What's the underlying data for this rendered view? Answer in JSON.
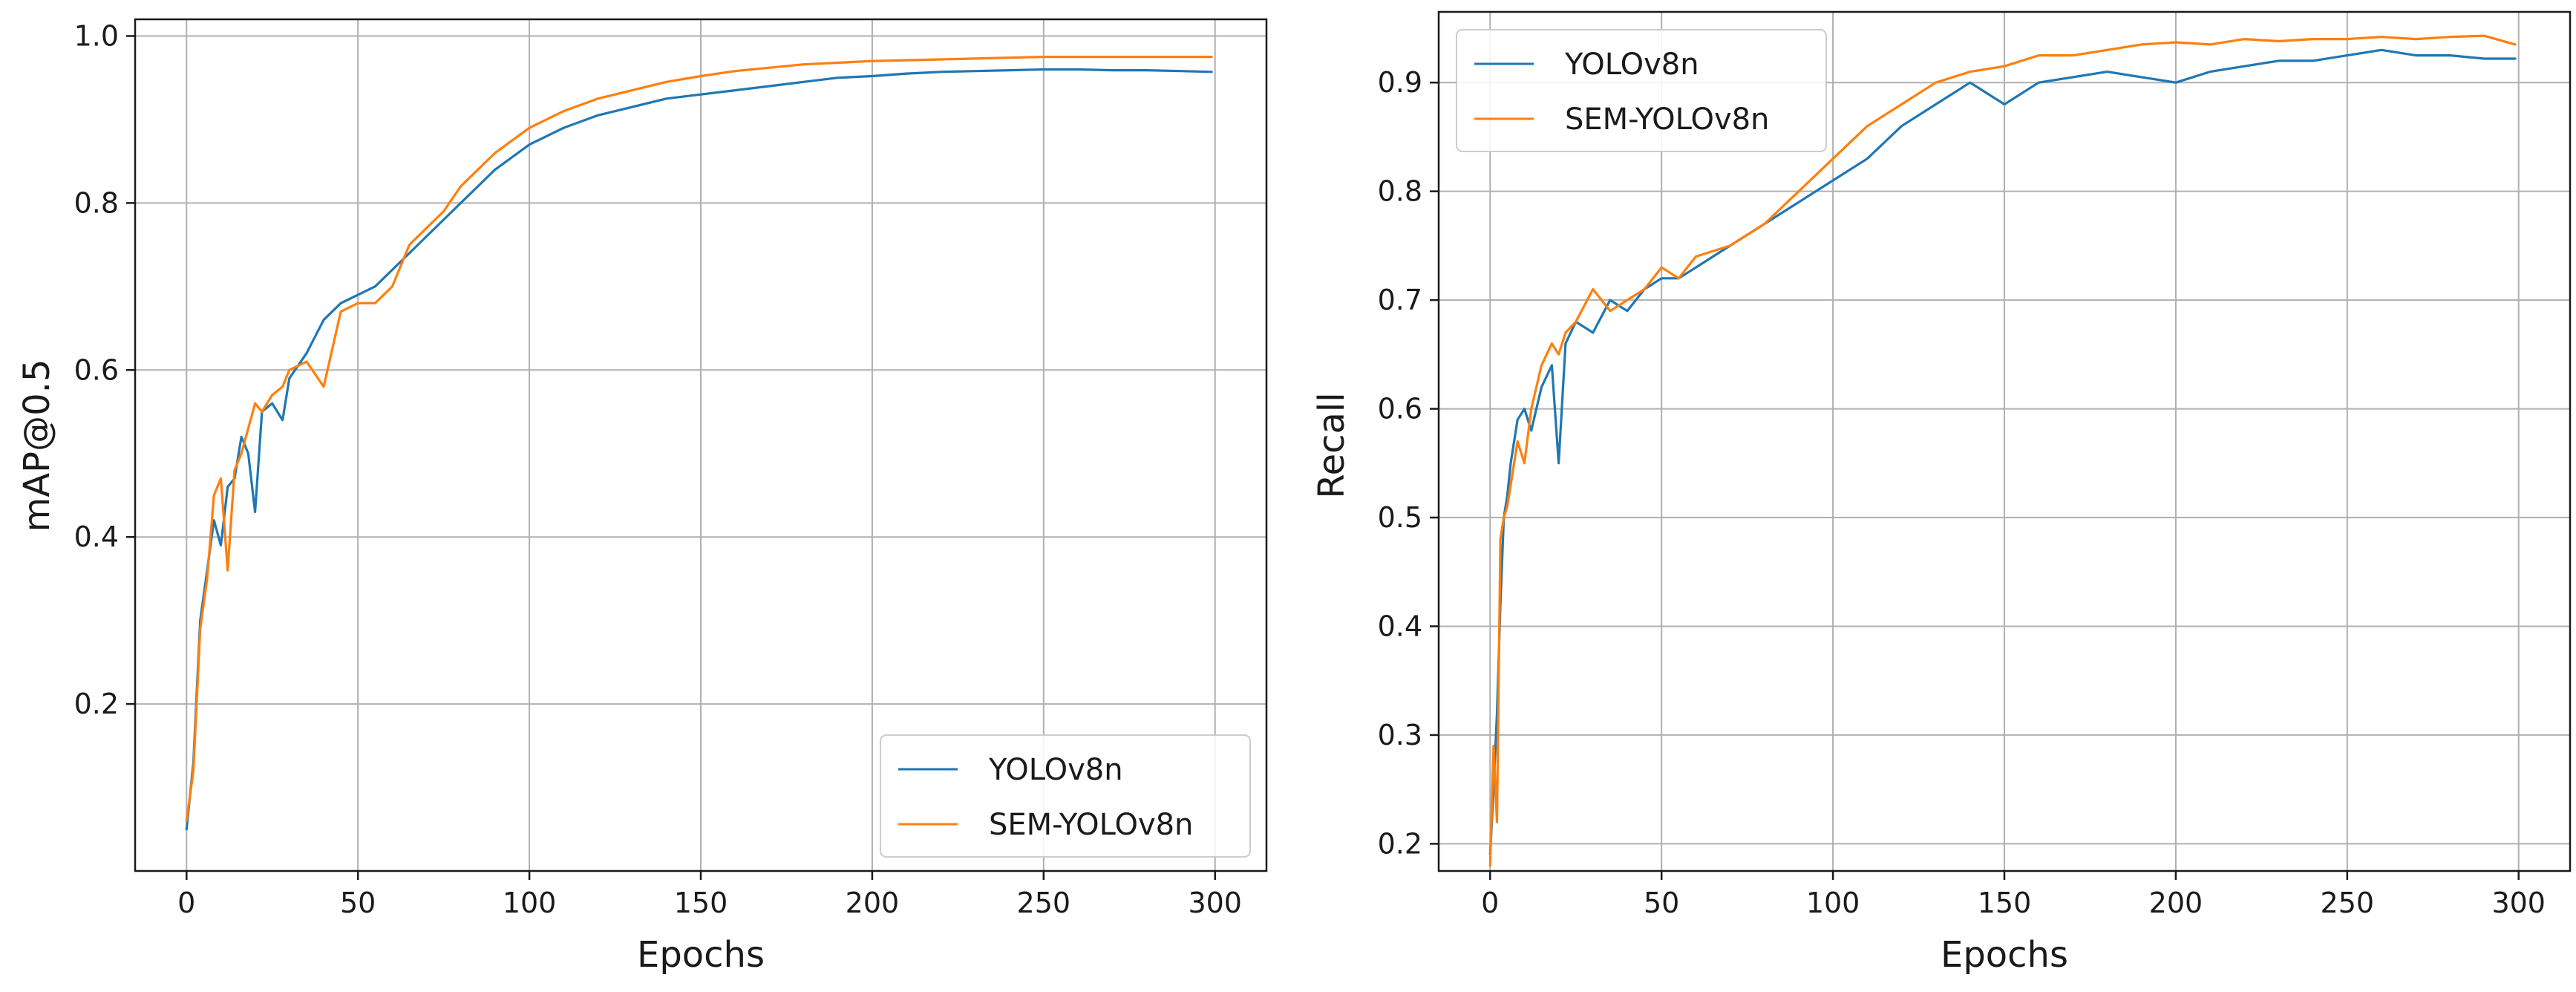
{
  "chart_data": [
    {
      "type": "line",
      "title": "",
      "xlabel": "Epochs",
      "ylabel": "mAP@0.5",
      "xlim": [
        -15,
        315
      ],
      "ylim": [
        0.0,
        1.02
      ],
      "xticks": [
        0,
        50,
        100,
        150,
        200,
        250,
        300
      ],
      "yticks": [
        0.2,
        0.4,
        0.6,
        0.8,
        1.0
      ],
      "xtick_labels": [
        "0",
        "50",
        "100",
        "150",
        "200",
        "250",
        "300"
      ],
      "ytick_labels": [
        "0.2",
        "0.4",
        "0.6",
        "0.8",
        "1.0"
      ],
      "grid": true,
      "legend_position": "bottom-right",
      "series": [
        {
          "name": "YOLOv8n",
          "color": "#1f77b4",
          "x": [
            0,
            2,
            4,
            6,
            8,
            10,
            12,
            14,
            16,
            18,
            20,
            22,
            25,
            28,
            30,
            35,
            40,
            45,
            50,
            55,
            60,
            65,
            70,
            75,
            80,
            90,
            100,
            110,
            120,
            130,
            140,
            150,
            160,
            170,
            180,
            190,
            200,
            210,
            220,
            230,
            240,
            250,
            260,
            270,
            280,
            290,
            299
          ],
          "values": [
            0.05,
            0.13,
            0.3,
            0.36,
            0.42,
            0.39,
            0.46,
            0.47,
            0.52,
            0.5,
            0.43,
            0.55,
            0.56,
            0.54,
            0.59,
            0.62,
            0.66,
            0.68,
            0.69,
            0.7,
            0.72,
            0.74,
            0.76,
            0.78,
            0.8,
            0.84,
            0.87,
            0.89,
            0.905,
            0.915,
            0.925,
            0.93,
            0.935,
            0.94,
            0.945,
            0.95,
            0.952,
            0.955,
            0.957,
            0.958,
            0.959,
            0.96,
            0.96,
            0.959,
            0.959,
            0.958,
            0.957
          ]
        },
        {
          "name": "SEM-YOLOv8n",
          "color": "#ff7f0e",
          "x": [
            0,
            2,
            4,
            6,
            8,
            10,
            12,
            14,
            16,
            18,
            20,
            22,
            25,
            28,
            30,
            35,
            40,
            45,
            50,
            55,
            60,
            65,
            70,
            75,
            80,
            90,
            100,
            110,
            120,
            130,
            140,
            150,
            160,
            170,
            180,
            190,
            200,
            210,
            220,
            230,
            240,
            250,
            260,
            270,
            280,
            290,
            299
          ],
          "values": [
            0.06,
            0.12,
            0.29,
            0.35,
            0.45,
            0.47,
            0.36,
            0.48,
            0.5,
            0.53,
            0.56,
            0.55,
            0.57,
            0.58,
            0.6,
            0.61,
            0.58,
            0.67,
            0.68,
            0.68,
            0.7,
            0.75,
            0.77,
            0.79,
            0.82,
            0.86,
            0.89,
            0.91,
            0.925,
            0.935,
            0.945,
            0.952,
            0.958,
            0.962,
            0.966,
            0.968,
            0.97,
            0.971,
            0.972,
            0.973,
            0.974,
            0.975,
            0.975,
            0.975,
            0.975,
            0.975,
            0.975
          ]
        }
      ]
    },
    {
      "type": "line",
      "title": "",
      "xlabel": "Epochs",
      "ylabel": "Recall",
      "xlim": [
        -15,
        315
      ],
      "ylim": [
        0.175,
        0.965
      ],
      "xticks": [
        0,
        50,
        100,
        150,
        200,
        250,
        300
      ],
      "yticks": [
        0.2,
        0.3,
        0.4,
        0.5,
        0.6,
        0.7,
        0.8,
        0.9
      ],
      "xtick_labels": [
        "0",
        "50",
        "100",
        "150",
        "200",
        "250",
        "300"
      ],
      "ytick_labels": [
        "0.2",
        "0.3",
        "0.4",
        "0.5",
        "0.6",
        "0.7",
        "0.8",
        "0.9"
      ],
      "grid": true,
      "legend_position": "top-left",
      "series": [
        {
          "name": "YOLOv8n",
          "color": "#1f77b4",
          "x": [
            0,
            1,
            2,
            3,
            4,
            5,
            6,
            8,
            10,
            12,
            15,
            18,
            20,
            22,
            25,
            30,
            35,
            40,
            45,
            50,
            55,
            60,
            70,
            80,
            90,
            100,
            110,
            120,
            130,
            140,
            150,
            160,
            170,
            180,
            190,
            200,
            210,
            220,
            230,
            240,
            250,
            260,
            270,
            280,
            290,
            299
          ],
          "values": [
            0.19,
            0.25,
            0.32,
            0.42,
            0.5,
            0.52,
            0.55,
            0.59,
            0.6,
            0.58,
            0.62,
            0.64,
            0.55,
            0.66,
            0.68,
            0.67,
            0.7,
            0.69,
            0.71,
            0.72,
            0.72,
            0.73,
            0.75,
            0.77,
            0.79,
            0.81,
            0.83,
            0.86,
            0.88,
            0.9,
            0.88,
            0.9,
            0.905,
            0.91,
            0.905,
            0.9,
            0.91,
            0.915,
            0.92,
            0.92,
            0.925,
            0.93,
            0.925,
            0.925,
            0.922,
            0.922
          ]
        },
        {
          "name": "SEM-YOLOv8n",
          "color": "#ff7f0e",
          "x": [
            0,
            1,
            2,
            3,
            4,
            5,
            6,
            8,
            10,
            12,
            15,
            18,
            20,
            22,
            25,
            30,
            35,
            40,
            45,
            50,
            55,
            60,
            70,
            80,
            90,
            100,
            110,
            120,
            130,
            140,
            150,
            160,
            170,
            180,
            190,
            200,
            210,
            220,
            230,
            240,
            250,
            260,
            270,
            280,
            290,
            299
          ],
          "values": [
            0.18,
            0.29,
            0.22,
            0.48,
            0.5,
            0.51,
            0.53,
            0.57,
            0.55,
            0.6,
            0.64,
            0.66,
            0.65,
            0.67,
            0.68,
            0.71,
            0.69,
            0.7,
            0.71,
            0.73,
            0.72,
            0.74,
            0.75,
            0.77,
            0.8,
            0.83,
            0.86,
            0.88,
            0.9,
            0.91,
            0.915,
            0.925,
            0.925,
            0.93,
            0.935,
            0.937,
            0.935,
            0.94,
            0.938,
            0.94,
            0.94,
            0.942,
            0.94,
            0.942,
            0.943,
            0.935
          ]
        }
      ]
    }
  ]
}
